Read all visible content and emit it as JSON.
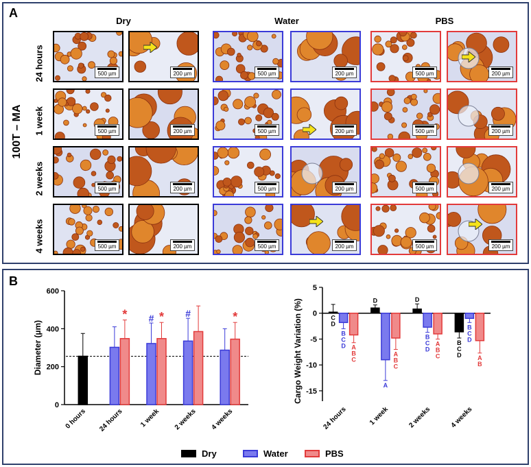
{
  "panel_a": {
    "label": "A",
    "side_label": "100T – MA",
    "group_headers": [
      "Dry",
      "Water",
      "PBS"
    ],
    "rows": [
      "24 hours",
      "1 week",
      "2 weeks",
      "4 weeks"
    ],
    "scale_low": "500 µm",
    "scale_high": "200 µm"
  },
  "panel_b": {
    "label": "B",
    "legend": [
      {
        "name": "Dry",
        "color": "#000000"
      },
      {
        "name": "Water",
        "color": "#3a3ad8"
      },
      {
        "name": "PBS",
        "color": "#e23a3a"
      }
    ]
  },
  "chart_data": [
    {
      "type": "bar",
      "ylabel": "Diameter (µm)",
      "ylim": [
        0,
        600
      ],
      "yticks": [
        0,
        200,
        400,
        600
      ],
      "categories": [
        "0 hours",
        "24 hours",
        "1 week",
        "2 weeks",
        "4 weeks"
      ],
      "reference_line": 255,
      "series": [
        {
          "name": "Dry",
          "values": [
            255,
            null,
            null,
            null,
            null
          ],
          "errors": [
            120,
            null,
            null,
            null,
            null
          ]
        },
        {
          "name": "Water",
          "values": [
            null,
            302,
            322,
            335,
            287
          ],
          "errors": [
            null,
            108,
            108,
            120,
            113
          ]
        },
        {
          "name": "PBS",
          "values": [
            null,
            348,
            348,
            385,
            345
          ],
          "errors": [
            null,
            98,
            85,
            135,
            88
          ]
        }
      ],
      "annotations": [
        {
          "category": "24 hours",
          "series": "PBS",
          "text": "*"
        },
        {
          "category": "1 week",
          "series": "Water",
          "text": "#"
        },
        {
          "category": "1 week",
          "series": "PBS",
          "text": "*"
        },
        {
          "category": "2 weeks",
          "series": "Water",
          "text": "#"
        },
        {
          "category": "4 weeks",
          "series": "PBS",
          "text": "*"
        }
      ]
    },
    {
      "type": "bar",
      "ylabel": "Cargo Weight Variation (%)",
      "ylim": [
        -17,
        5
      ],
      "yticks": [
        5,
        0,
        -5,
        -10,
        -15
      ],
      "categories": [
        "24 hours",
        "1 week",
        "2 weeks",
        "4 weeks"
      ],
      "series": [
        {
          "name": "Dry",
          "values": [
            0.2,
            1.0,
            0.8,
            -3.6
          ],
          "errors": [
            1.5,
            0.6,
            1.0,
            1.2
          ]
        },
        {
          "name": "Water",
          "values": [
            -1.8,
            -9.0,
            -2.7,
            -1.0
          ],
          "errors": [
            1.2,
            4.0,
            1.0,
            0.8
          ]
        },
        {
          "name": "PBS",
          "values": [
            -4.2,
            -4.8,
            -4.0,
            -5.3
          ],
          "errors": [
            1.5,
            2.2,
            1.0,
            2.4
          ]
        }
      ],
      "letters": [
        {
          "category": "24 hours",
          "series": "Dry",
          "text": [
            "C",
            "D"
          ]
        },
        {
          "category": "24 hours",
          "series": "Water",
          "text": [
            "B",
            "C",
            "D"
          ]
        },
        {
          "category": "24 hours",
          "series": "PBS",
          "text": [
            "A",
            "B",
            "C"
          ]
        },
        {
          "category": "1 week",
          "series": "Dry",
          "text": [
            "D"
          ]
        },
        {
          "category": "1 week",
          "series": "Water",
          "text": [
            "A"
          ]
        },
        {
          "category": "1 week",
          "series": "PBS",
          "text": [
            "A",
            "B",
            "C"
          ]
        },
        {
          "category": "2 weeks",
          "series": "Dry",
          "text": [
            "D"
          ]
        },
        {
          "category": "2 weeks",
          "series": "Water",
          "text": [
            "B",
            "C",
            "D"
          ]
        },
        {
          "category": "2 weeks",
          "series": "PBS",
          "text": [
            "A",
            "B",
            "C"
          ]
        },
        {
          "category": "4 weeks",
          "series": "Dry",
          "text": [
            "B",
            "C",
            "D"
          ]
        },
        {
          "category": "4 weeks",
          "series": "Water",
          "text": [
            "B",
            "C",
            "D"
          ]
        },
        {
          "category": "4 weeks",
          "series": "PBS",
          "text": [
            "A",
            "B"
          ]
        }
      ]
    }
  ]
}
